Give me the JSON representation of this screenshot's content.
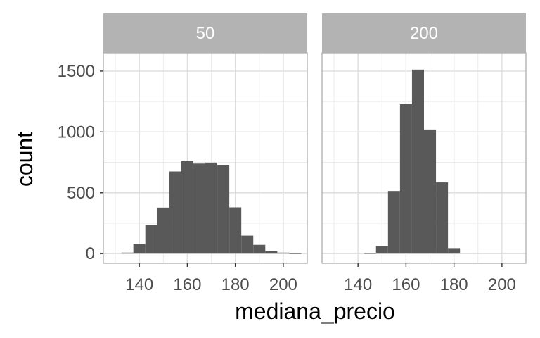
{
  "chart_data": {
    "type": "bar",
    "subtype": "faceted-histogram",
    "xlabel": "mediana_precio",
    "ylabel": "count",
    "xlim": [
      125,
      210
    ],
    "ylim": [
      -80,
      1650
    ],
    "x_ticks": [
      140,
      160,
      180,
      200
    ],
    "x_minor_ticks": [
      130,
      150,
      170,
      190,
      210
    ],
    "y_ticks": [
      0,
      500,
      1000,
      1500
    ],
    "y_minor_ticks": [
      250,
      750,
      1250
    ],
    "bin_width": 5,
    "bar_color": "#595959",
    "panel_background": "#ffffff",
    "strip_color": "#b3b3b3",
    "grid": true,
    "legend": "none",
    "facets": [
      {
        "label": "50",
        "bins": [
          {
            "x0": 132.5,
            "count": 8
          },
          {
            "x0": 137.5,
            "count": 80
          },
          {
            "x0": 142.5,
            "count": 235
          },
          {
            "x0": 147.5,
            "count": 378
          },
          {
            "x0": 152.5,
            "count": 675
          },
          {
            "x0": 157.5,
            "count": 760
          },
          {
            "x0": 162.5,
            "count": 740
          },
          {
            "x0": 167.5,
            "count": 748
          },
          {
            "x0": 172.5,
            "count": 725
          },
          {
            "x0": 177.5,
            "count": 380
          },
          {
            "x0": 182.5,
            "count": 148
          },
          {
            "x0": 187.5,
            "count": 72
          },
          {
            "x0": 192.5,
            "count": 20
          },
          {
            "x0": 197.5,
            "count": 8
          },
          {
            "x0": 202.5,
            "count": 2
          }
        ]
      },
      {
        "label": "200",
        "bins": [
          {
            "x0": 142.5,
            "count": 3
          },
          {
            "x0": 147.5,
            "count": 62
          },
          {
            "x0": 152.5,
            "count": 515
          },
          {
            "x0": 157.5,
            "count": 1228
          },
          {
            "x0": 162.5,
            "count": 1512
          },
          {
            "x0": 167.5,
            "count": 1020
          },
          {
            "x0": 172.5,
            "count": 585
          },
          {
            "x0": 177.5,
            "count": 45
          }
        ]
      }
    ]
  }
}
